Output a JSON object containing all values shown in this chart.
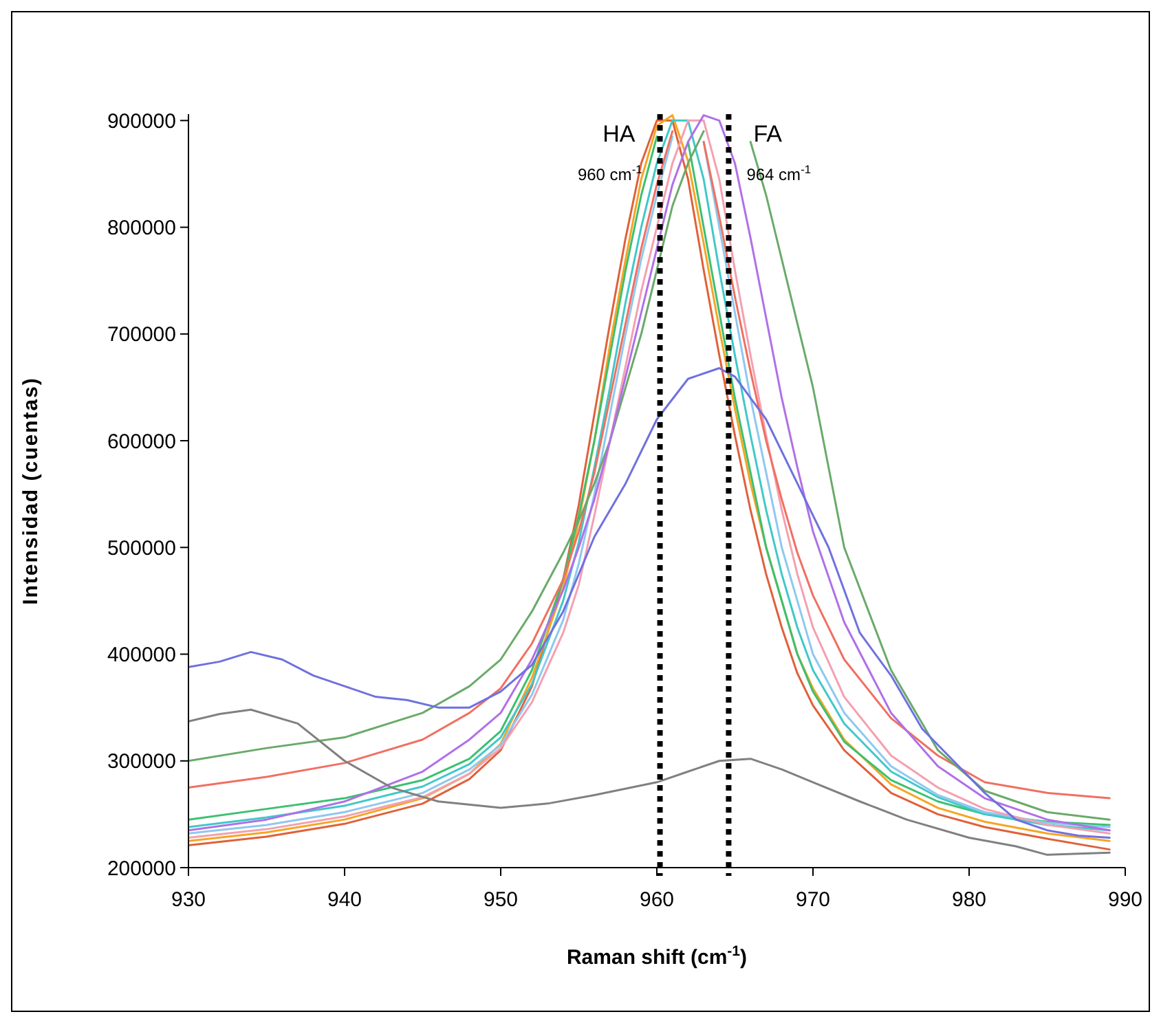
{
  "chart_data": {
    "type": "line",
    "xlabel": "Raman shift (cm$^{-1}$)",
    "ylabel": "Intensidad (cuentas)",
    "xlim": [
      930,
      990
    ],
    "xticks": [
      930,
      940,
      950,
      960,
      970,
      980,
      990
    ],
    "ylim": [
      200000,
      906000
    ],
    "yticks": [
      200000,
      300000,
      400000,
      500000,
      600000,
      700000,
      800000,
      900000
    ],
    "grid": false,
    "marker": "none",
    "line_style": "solid",
    "x": [
      930,
      935,
      940,
      945,
      948,
      950,
      952,
      954,
      955,
      956,
      957,
      958,
      959,
      960,
      961,
      962,
      963,
      964,
      965,
      966,
      967,
      968,
      969,
      970,
      972,
      975,
      978,
      981,
      985,
      989
    ],
    "series": [
      {
        "color": "#e0603a",
        "values": [
          221000,
          229000,
          241000,
          260000,
          283000,
          310000,
          370000,
          470000,
          540000,
          625000,
          710000,
          790000,
          860000,
          900000,
          900000,
          845000,
          760000,
          680000,
          605000,
          535000,
          475000,
          425000,
          382000,
          352000,
          310000,
          270000,
          250000,
          238000,
          227000,
          217000
        ]
      },
      {
        "color": "#f5a623",
        "values": [
          225000,
          233000,
          245000,
          265000,
          288000,
          316000,
          378000,
          462000,
          525000,
          600000,
          690000,
          770000,
          845000,
          895000,
          905000,
          862000,
          785000,
          705000,
          630000,
          560000,
          500000,
          450000,
          400000,
          368000,
          320000,
          278000,
          256000,
          243000,
          232000,
          225000
        ]
      },
      {
        "color": "#3cc070",
        "values": [
          245000,
          255000,
          265000,
          282000,
          302000,
          328000,
          385000,
          470000,
          530000,
          600000,
          680000,
          760000,
          830000,
          885000,
          null,
          880000,
          800000,
          720000,
          640000,
          570000,
          500000,
          450000,
          400000,
          365000,
          318000,
          282000,
          262000,
          250000,
          243000,
          240000
        ]
      },
      {
        "color": "#40c8c8",
        "values": [
          238000,
          247000,
          258000,
          276000,
          297000,
          322000,
          372000,
          450000,
          505000,
          575000,
          650000,
          730000,
          800000,
          860000,
          900000,
          900000,
          845000,
          760000,
          680000,
          605000,
          535000,
          475000,
          425000,
          385000,
          335000,
          290000,
          266000,
          250000,
          240000,
          235000
        ]
      },
      {
        "color": "#8ec8f0",
        "values": [
          232000,
          240000,
          252000,
          270000,
          292000,
          315000,
          362000,
          432000,
          485000,
          550000,
          625000,
          700000,
          770000,
          830000,
          885000,
          null,
          880000,
          800000,
          720000,
          640000,
          570000,
          500000,
          450000,
          400000,
          345000,
          295000,
          268000,
          252000,
          242000,
          238000
        ]
      },
      {
        "color": "#f4a0b0",
        "values": [
          228000,
          236000,
          248000,
          266000,
          288000,
          312000,
          355000,
          420000,
          465000,
          530000,
          600000,
          670000,
          740000,
          800000,
          860000,
          900000,
          900000,
          845000,
          760000,
          680000,
          605000,
          535000,
          475000,
          425000,
          360000,
          305000,
          275000,
          255000,
          240000,
          232000
        ]
      },
      {
        "color": "#f07060",
        "values": [
          275000,
          285000,
          298000,
          320000,
          345000,
          368000,
          410000,
          470000,
          515000,
          570000,
          640000,
          710000,
          780000,
          840000,
          890000,
          null,
          880000,
          810000,
          735000,
          665000,
          600000,
          545000,
          495000,
          455000,
          395000,
          340000,
          305000,
          280000,
          270000,
          265000
        ]
      },
      {
        "color": "#6aaa6a",
        "values": [
          300000,
          312000,
          322000,
          345000,
          370000,
          395000,
          440000,
          495000,
          525000,
          560000,
          600000,
          650000,
          700000,
          760000,
          820000,
          860000,
          890000,
          null,
          null,
          880000,
          830000,
          770000,
          710000,
          650000,
          500000,
          385000,
          310000,
          272000,
          252000,
          245000
        ]
      },
      {
        "color": "#b070e8",
        "values": [
          235000,
          245000,
          262000,
          290000,
          320000,
          345000,
          395000,
          460000,
          500000,
          545000,
          600000,
          660000,
          720000,
          780000,
          840000,
          880000,
          905000,
          900000,
          860000,
          790000,
          715000,
          640000,
          575000,
          515000,
          430000,
          345000,
          295000,
          265000,
          245000,
          235000
        ]
      },
      {
        "color": "#7070e0",
        "x": [
          930,
          932,
          934,
          936,
          938,
          940,
          942,
          944,
          946,
          948,
          950,
          952,
          954,
          956,
          958,
          960,
          962,
          964,
          965,
          967,
          969,
          971,
          973,
          975,
          977,
          979,
          981,
          983,
          985,
          987,
          989
        ],
        "values": [
          388000,
          393000,
          402000,
          395000,
          380000,
          370000,
          360000,
          357000,
          350000,
          350000,
          365000,
          390000,
          440000,
          510000,
          560000,
          620000,
          658000,
          668000,
          660000,
          620000,
          560000,
          500000,
          420000,
          380000,
          330000,
          300000,
          270000,
          245000,
          235000,
          230000,
          228000
        ]
      },
      {
        "color": "#808080",
        "x": [
          930,
          932,
          934,
          937,
          940,
          943,
          946,
          950,
          953,
          956,
          960,
          962,
          964,
          966,
          968,
          970,
          973,
          976,
          980,
          983,
          985,
          987,
          989
        ],
        "values": [
          337000,
          344000,
          348000,
          335000,
          300000,
          275000,
          262000,
          256000,
          260000,
          268000,
          280000,
          290000,
          300000,
          302000,
          292000,
          280000,
          262000,
          245000,
          228000,
          220000,
          212000,
          213000,
          214000
        ]
      }
    ],
    "ref_lines": [
      {
        "axis": "x",
        "value": 960.2,
        "label": "HA",
        "color": "#000000",
        "line_style": "dotted"
      },
      {
        "axis": "x",
        "value": 964.6,
        "label": "FA",
        "color": "#000000",
        "line_style": "dotted"
      }
    ],
    "annotations": [
      {
        "text": "960 cm$^{-1}$",
        "x": 960.2
      },
      {
        "text": "964 cm$^{-1}$",
        "x": 964.6
      }
    ]
  }
}
